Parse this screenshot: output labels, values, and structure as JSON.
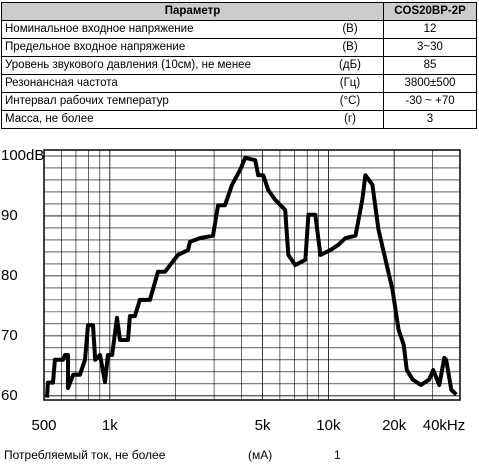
{
  "table": {
    "header": [
      "Параметр",
      "COS20BP-2P"
    ],
    "rows": [
      [
        "Номинальное входное напряжение",
        "(В)",
        "12"
      ],
      [
        "Предельное входное напряжение",
        "(В)",
        "3~30"
      ],
      [
        "Уровень звукового давления (10см), не менее",
        "(дБ)",
        "85"
      ],
      [
        "Резонансная частота",
        "(Гц)",
        "3800±500"
      ],
      [
        "Интервал рабочих температур",
        "(°C)",
        "-30 ~ +70"
      ],
      [
        "Масса, не более",
        "(г)",
        "3"
      ]
    ]
  },
  "chart_data": {
    "type": "line",
    "log_x": true,
    "grid": true,
    "xlim": [
      500,
      40000
    ],
    "ylim": [
      59.3,
      101
    ],
    "xticks": [
      500,
      {
        "value": 1000,
        "label": "1k"
      },
      {
        "value": 5000,
        "label": "5k"
      },
      {
        "value": 10000,
        "label": "10k"
      },
      {
        "value": 20000,
        "label": "20k"
      },
      {
        "value": 40000,
        "label": "40kHz"
      }
    ],
    "xminor": [
      600,
      700,
      800,
      900,
      2000,
      3000,
      4000,
      6000,
      7000,
      8000,
      9000,
      30000
    ],
    "yticks": [
      60,
      70,
      80,
      90,
      {
        "value": 100,
        "label": "100dB"
      }
    ],
    "yminor": [
      62,
      64,
      66,
      68,
      72,
      74,
      76,
      78,
      82,
      84,
      86,
      88,
      92,
      94,
      96,
      98
    ],
    "series": [
      {
        "color": "#000000",
        "x": [
          516,
          521,
          550,
          561,
          611,
          624,
          644,
          644,
          679,
          730,
          770,
          795,
          838,
          857,
          902,
          951,
          980,
          1024,
          1079,
          1113,
          1211,
          1236,
          1302,
          1372,
          1526,
          1661,
          1788,
          2051,
          2279,
          2327,
          2587,
          2967,
          3128,
          3366,
          3624,
          3948,
          4161,
          4624,
          4774,
          5034,
          5309,
          5713,
          6346,
          6553,
          7057,
          7846,
          8098,
          8715,
          9192,
          10215,
          11120,
          11973,
          13300,
          14300,
          14770,
          15900,
          16950,
          18250,
          19650,
          20950,
          22100,
          22830,
          24300,
          26500,
          28900,
          30160,
          32150,
          33900,
          34600,
          36500,
          38480
        ],
        "values": [
          59.7,
          62.2,
          62.2,
          66,
          66,
          66.8,
          66.8,
          61.3,
          63.5,
          63.5,
          66,
          71.8,
          71.8,
          66,
          66.8,
          62.3,
          66.8,
          66.8,
          73,
          69.3,
          69.3,
          73.3,
          73.3,
          76,
          76,
          80.7,
          80.7,
          83.5,
          84.3,
          85.7,
          86.3,
          86.7,
          91.8,
          91.8,
          95.2,
          97.7,
          99.7,
          99.3,
          96.8,
          96.8,
          94.3,
          92.7,
          91,
          83.5,
          81.8,
          82.7,
          90.2,
          90.2,
          83.5,
          84.3,
          85.2,
          86.3,
          86.7,
          92.7,
          96.8,
          95.2,
          87.7,
          82.7,
          77.7,
          71,
          68.5,
          64.3,
          62.7,
          61.8,
          62.7,
          64.3,
          61.8,
          66.3,
          66,
          61,
          60.2
        ]
      }
    ]
  }
}
